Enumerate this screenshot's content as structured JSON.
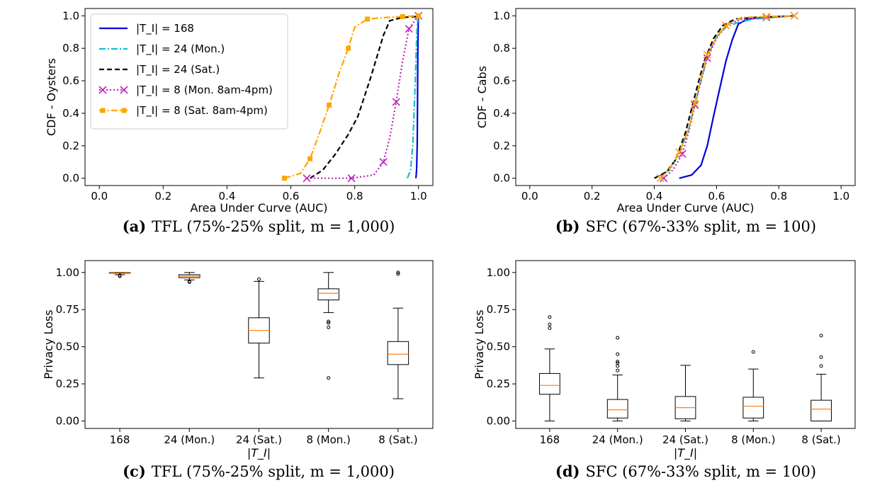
{
  "chart_data": [
    {
      "panel": "a",
      "type": "line",
      "caption_label": "(a)",
      "caption_text": "TFL (75%-25% split, m = 1,000)",
      "xlabel": "Area Under Curve (AUC)",
      "ylabel": "CDF - Oysters",
      "xlim": [
        0.0,
        1.0
      ],
      "ylim": [
        0.0,
        1.0
      ],
      "xticks": [
        "0.0",
        "0.2",
        "0.4",
        "0.6",
        "0.8",
        "1.0"
      ],
      "yticks": [
        "0.0",
        "0.2",
        "0.4",
        "0.6",
        "0.8",
        "1.0"
      ],
      "legend_position": "top-left",
      "series": [
        {
          "name": "|T_I| = 168",
          "color": "#0000dd",
          "dash": "solid",
          "marker": "none",
          "x": [
            0.992,
            0.994,
            0.996,
            0.997,
            0.998,
            0.999,
            1.0
          ],
          "y": [
            0.0,
            0.05,
            0.2,
            0.5,
            0.8,
            0.95,
            1.0
          ]
        },
        {
          "name": "|T_I| = 24 (Mon.)",
          "color": "#17becf",
          "dash": "dashdot",
          "marker": "none",
          "x": [
            0.965,
            0.975,
            0.982,
            0.986,
            0.99,
            0.993,
            0.996,
            1.0
          ],
          "y": [
            0.0,
            0.05,
            0.2,
            0.4,
            0.6,
            0.8,
            0.95,
            1.0
          ]
        },
        {
          "name": "|T_I| = 24 (Sat.)",
          "color": "#000000",
          "dash": "dashed",
          "marker": "none",
          "x": [
            0.66,
            0.7,
            0.74,
            0.78,
            0.81,
            0.83,
            0.85,
            0.87,
            0.89,
            0.91,
            0.95,
            0.99,
            1.0
          ],
          "y": [
            0.0,
            0.05,
            0.15,
            0.27,
            0.38,
            0.5,
            0.62,
            0.75,
            0.88,
            0.97,
            0.99,
            0.995,
            1.0
          ]
        },
        {
          "name": "|T_I| = 8 (Mon. 8am-4pm)",
          "color": "#c020c0",
          "dash": "dotted",
          "marker": "x",
          "x": [
            0.65,
            0.72,
            0.79,
            0.86,
            0.89,
            0.91,
            0.93,
            0.95,
            0.97,
            1.0
          ],
          "y": [
            0.0,
            0.0,
            0.0,
            0.02,
            0.1,
            0.25,
            0.47,
            0.72,
            0.92,
            1.0
          ]
        },
        {
          "name": "|T_I| = 8 (Sat. 8am-4pm)",
          "color": "#ffa500",
          "dash": "dashdot",
          "marker": "square",
          "x": [
            0.58,
            0.63,
            0.66,
            0.69,
            0.72,
            0.75,
            0.78,
            0.8,
            0.84,
            0.9,
            0.95,
            1.0
          ],
          "y": [
            0.0,
            0.03,
            0.12,
            0.28,
            0.45,
            0.64,
            0.8,
            0.93,
            0.98,
            0.99,
            0.995,
            1.0
          ]
        }
      ]
    },
    {
      "panel": "b",
      "type": "line",
      "caption_label": "(b)",
      "caption_text": "SFC (67%-33% split, m = 100)",
      "xlabel": "Area Under Curve (AUC)",
      "ylabel": "CDF - Cabs",
      "xlim": [
        0.0,
        1.0
      ],
      "ylim": [
        0.0,
        1.0
      ],
      "xticks": [
        "0.0",
        "0.2",
        "0.4",
        "0.6",
        "0.8",
        "1.0"
      ],
      "yticks": [
        "0.0",
        "0.2",
        "0.4",
        "0.6",
        "0.8",
        "1.0"
      ],
      "series": [
        {
          "name": "|T_I| = 168",
          "color": "#0000dd",
          "dash": "solid",
          "marker": "none",
          "x": [
            0.48,
            0.52,
            0.55,
            0.57,
            0.59,
            0.61,
            0.63,
            0.65,
            0.67,
            0.7,
            0.75,
            0.85
          ],
          "y": [
            0.0,
            0.02,
            0.08,
            0.2,
            0.38,
            0.55,
            0.72,
            0.85,
            0.95,
            0.98,
            0.99,
            1.0
          ]
        },
        {
          "name": "|T_I| = 24 (Mon.)",
          "color": "#17becf",
          "dash": "dashdot",
          "marker": "none",
          "x": [
            0.4,
            0.45,
            0.48,
            0.51,
            0.53,
            0.55,
            0.57,
            0.6,
            0.63,
            0.67,
            0.72,
            0.85
          ],
          "y": [
            0.0,
            0.05,
            0.15,
            0.3,
            0.45,
            0.6,
            0.75,
            0.87,
            0.93,
            0.96,
            0.98,
            1.0
          ]
        },
        {
          "name": "|T_I| = 24 (Sat.)",
          "color": "#000000",
          "dash": "dashed",
          "marker": "none",
          "x": [
            0.4,
            0.44,
            0.47,
            0.5,
            0.52,
            0.54,
            0.56,
            0.59,
            0.62,
            0.66,
            0.72,
            0.85
          ],
          "y": [
            0.0,
            0.04,
            0.12,
            0.28,
            0.43,
            0.58,
            0.72,
            0.86,
            0.94,
            0.98,
            0.99,
            1.0
          ]
        },
        {
          "name": "|T_I| = 8 (Mon. 8am-4pm)",
          "color": "#c020c0",
          "dash": "dotted",
          "marker": "x",
          "x": [
            0.43,
            0.46,
            0.49,
            0.51,
            0.53,
            0.55,
            0.57,
            0.6,
            0.63,
            0.68,
            0.76,
            0.85
          ],
          "y": [
            0.0,
            0.05,
            0.15,
            0.28,
            0.45,
            0.6,
            0.74,
            0.86,
            0.94,
            0.98,
            0.99,
            1.0
          ]
        },
        {
          "name": "|T_I| = 8 (Sat. 8am-4pm)",
          "color": "#ffa500",
          "dash": "dashdot",
          "marker": "x",
          "x": [
            0.42,
            0.45,
            0.48,
            0.51,
            0.53,
            0.55,
            0.57,
            0.6,
            0.63,
            0.68,
            0.76,
            0.85
          ],
          "y": [
            0.0,
            0.06,
            0.16,
            0.3,
            0.46,
            0.62,
            0.76,
            0.87,
            0.94,
            0.99,
            0.995,
            1.0
          ]
        }
      ]
    },
    {
      "panel": "c",
      "type": "boxplot",
      "caption_label": "(c)",
      "caption_text": "TFL (75%-25% split, m = 1,000)",
      "xlabel": "|T_I|",
      "ylabel": "Privacy Loss",
      "ylim": [
        -0.05,
        1.08
      ],
      "yticks": [
        "0.00",
        "0.25",
        "0.50",
        "0.75",
        "1.00"
      ],
      "categories": [
        "168",
        "24 (Mon.)",
        "24 (Sat.)",
        "8 (Mon.)",
        "8 (Sat.)"
      ],
      "boxes": [
        {
          "whislo": 0.985,
          "q1": 0.995,
          "med": 0.998,
          "q3": 1.0,
          "whishi": 1.0,
          "fliers": [
            0.98,
            0.975
          ]
        },
        {
          "whislo": 0.95,
          "q1": 0.965,
          "med": 0.975,
          "q3": 0.985,
          "whishi": 1.0,
          "fliers": [
            0.94,
            0.935
          ]
        },
        {
          "whislo": 0.29,
          "q1": 0.525,
          "med": 0.61,
          "q3": 0.695,
          "whishi": 0.94,
          "fliers": [
            0.955
          ]
        },
        {
          "whislo": 0.73,
          "q1": 0.815,
          "med": 0.86,
          "q3": 0.89,
          "whishi": 1.0,
          "fliers": [
            0.67,
            0.66,
            0.63,
            0.29
          ]
        },
        {
          "whislo": 0.15,
          "q1": 0.38,
          "med": 0.45,
          "q3": 0.535,
          "whishi": 0.76,
          "fliers": [
            1.0,
            0.99
          ]
        }
      ]
    },
    {
      "panel": "d",
      "type": "boxplot",
      "caption_label": "(d)",
      "caption_text": "SFC (67%-33% split, m = 100)",
      "xlabel": "|T_I|",
      "ylabel": "Privacy Loss",
      "ylim": [
        -0.05,
        1.08
      ],
      "yticks": [
        "0.00",
        "0.25",
        "0.50",
        "0.75",
        "1.00"
      ],
      "categories": [
        "168",
        "24 (Mon.)",
        "24 (Sat.)",
        "8 (Mon.)",
        "8 (Sat.)"
      ],
      "boxes": [
        {
          "whislo": 0.0,
          "q1": 0.18,
          "med": 0.24,
          "q3": 0.32,
          "whishi": 0.485,
          "fliers": [
            0.625,
            0.65,
            0.7
          ]
        },
        {
          "whislo": 0.0,
          "q1": 0.02,
          "med": 0.075,
          "q3": 0.145,
          "whishi": 0.31,
          "fliers": [
            0.34,
            0.37,
            0.39,
            0.4,
            0.45,
            0.56
          ]
        },
        {
          "whislo": 0.0,
          "q1": 0.015,
          "med": 0.09,
          "q3": 0.165,
          "whishi": 0.375,
          "fliers": []
        },
        {
          "whislo": 0.0,
          "q1": 0.02,
          "med": 0.1,
          "q3": 0.16,
          "whishi": 0.35,
          "fliers": [
            0.465
          ]
        },
        {
          "whislo": 0.0,
          "q1": 0.0,
          "med": 0.08,
          "q3": 0.14,
          "whishi": 0.315,
          "fliers": [
            0.37,
            0.43,
            0.575
          ]
        }
      ]
    }
  ]
}
